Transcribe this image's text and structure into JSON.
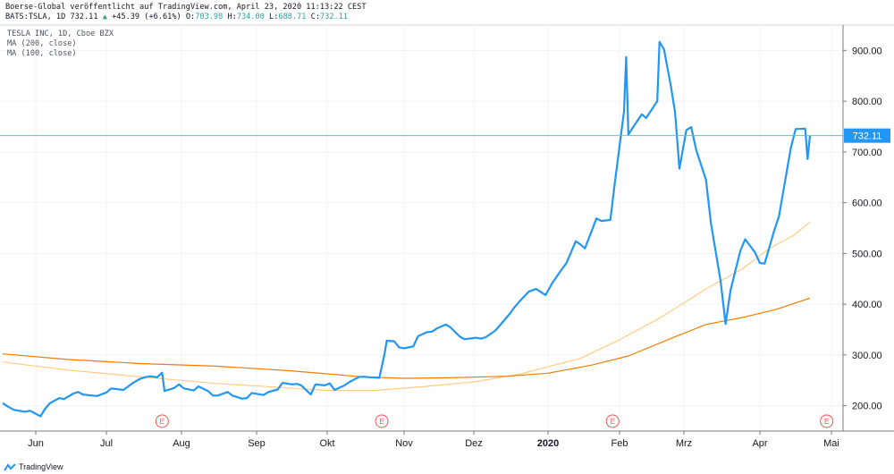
{
  "header": {
    "line1": "Boerse-Global veröffentlicht auf TradingView.com, April 23, 2020 11:13:22 CEST",
    "symbol": "BATS:TSLA, 1D",
    "last": "732.11",
    "change": "+45.39 (+6.61%)",
    "o_label": "O:",
    "o": "703.98",
    "h_label": "H:",
    "h": "734.00",
    "l_label": "L:",
    "l": "688.71",
    "c_label": "C:",
    "c": "732.11"
  },
  "legend": {
    "title": "TESLA INC, 1D, Cboe BZX",
    "ma200": "MA (200, close)",
    "ma100": "MA (100, close)"
  },
  "footer": {
    "brand": "TradingView"
  },
  "colors": {
    "price": "#2196f3",
    "ma200": "#ffcc80",
    "ma100": "#f57c00",
    "last_line": "#64b5f6",
    "label_bg": "#2196f3",
    "earnings": "#ef5350",
    "axis": "#787b86"
  },
  "chart_data": {
    "type": "line",
    "y_axis": {
      "min": 150,
      "max": 950,
      "ticks": [
        200,
        300,
        400,
        500,
        600,
        700,
        800,
        900
      ],
      "tick_labels": [
        "200.00",
        "300.00",
        "400.00",
        "500.00",
        "600.00",
        "700.00",
        "800.00",
        "900.00"
      ]
    },
    "x_labels": [
      "Jun",
      "Jul",
      "Aug",
      "Sep",
      "Okt",
      "Nov",
      "Dez",
      "2020",
      "Feb",
      "Mrz",
      "Apr",
      "Mai"
    ],
    "last_price": 732.11,
    "last_price_label": "732.11",
    "earnings_marker_label": "E",
    "earnings_dates": [
      "2019-07-24",
      "2019-10-23",
      "2020-01-29",
      "2020-04-29"
    ],
    "series": [
      {
        "name": "TSLA",
        "points": [
          [
            "2019-05-20",
            205
          ],
          [
            "2019-05-22",
            198
          ],
          [
            "2019-05-24",
            192
          ],
          [
            "2019-05-28",
            188
          ],
          [
            "2019-05-30",
            190
          ],
          [
            "2019-06-03",
            179
          ],
          [
            "2019-06-05",
            194
          ],
          [
            "2019-06-07",
            205
          ],
          [
            "2019-06-11",
            215
          ],
          [
            "2019-06-13",
            213
          ],
          [
            "2019-06-17",
            224
          ],
          [
            "2019-06-19",
            227
          ],
          [
            "2019-06-21",
            222
          ],
          [
            "2019-06-25",
            220
          ],
          [
            "2019-06-27",
            219
          ],
          [
            "2019-07-01",
            226
          ],
          [
            "2019-07-03",
            234
          ],
          [
            "2019-07-08",
            231
          ],
          [
            "2019-07-10",
            238
          ],
          [
            "2019-07-12",
            245
          ],
          [
            "2019-07-15",
            253
          ],
          [
            "2019-07-17",
            256
          ],
          [
            "2019-07-19",
            258
          ],
          [
            "2019-07-22",
            256
          ],
          [
            "2019-07-24",
            265
          ],
          [
            "2019-07-25",
            229
          ],
          [
            "2019-07-29",
            235
          ],
          [
            "2019-07-31",
            242
          ],
          [
            "2019-08-02",
            234
          ],
          [
            "2019-08-06",
            230
          ],
          [
            "2019-08-08",
            238
          ],
          [
            "2019-08-12",
            229
          ],
          [
            "2019-08-14",
            220
          ],
          [
            "2019-08-16",
            220
          ],
          [
            "2019-08-20",
            227
          ],
          [
            "2019-08-22",
            220
          ],
          [
            "2019-08-26",
            214
          ],
          [
            "2019-08-28",
            215
          ],
          [
            "2019-08-30",
            225
          ],
          [
            "2019-09-04",
            221
          ],
          [
            "2019-09-06",
            227
          ],
          [
            "2019-09-10",
            232
          ],
          [
            "2019-09-12",
            245
          ],
          [
            "2019-09-16",
            242
          ],
          [
            "2019-09-18",
            243
          ],
          [
            "2019-09-20",
            240
          ],
          [
            "2019-09-24",
            222
          ],
          [
            "2019-09-26",
            242
          ],
          [
            "2019-09-30",
            240
          ],
          [
            "2019-10-02",
            244
          ],
          [
            "2019-10-04",
            231
          ],
          [
            "2019-10-08",
            240
          ],
          [
            "2019-10-10",
            247
          ],
          [
            "2019-10-14",
            257
          ],
          [
            "2019-10-16",
            257
          ],
          [
            "2019-10-18",
            256
          ],
          [
            "2019-10-22",
            255
          ],
          [
            "2019-10-24",
            299
          ],
          [
            "2019-10-25",
            328
          ],
          [
            "2019-10-28",
            327
          ],
          [
            "2019-10-30",
            315
          ],
          [
            "2019-11-01",
            313
          ],
          [
            "2019-11-05",
            317
          ],
          [
            "2019-11-07",
            337
          ],
          [
            "2019-11-11",
            345
          ],
          [
            "2019-11-13",
            346
          ],
          [
            "2019-11-15",
            352
          ],
          [
            "2019-11-19",
            360
          ],
          [
            "2019-11-21",
            354
          ],
          [
            "2019-11-25",
            336
          ],
          [
            "2019-11-27",
            331
          ],
          [
            "2019-12-02",
            334
          ],
          [
            "2019-12-04",
            332
          ],
          [
            "2019-12-06",
            335
          ],
          [
            "2019-12-10",
            348
          ],
          [
            "2019-12-12",
            359
          ],
          [
            "2019-12-16",
            381
          ],
          [
            "2019-12-18",
            394
          ],
          [
            "2019-12-20",
            405
          ],
          [
            "2019-12-24",
            425
          ],
          [
            "2019-12-27",
            430
          ],
          [
            "2019-12-31",
            418
          ],
          [
            "2020-01-03",
            443
          ],
          [
            "2020-01-07",
            469
          ],
          [
            "2020-01-09",
            481
          ],
          [
            "2020-01-13",
            524
          ],
          [
            "2020-01-15",
            518
          ],
          [
            "2020-01-17",
            510
          ],
          [
            "2020-01-22",
            569
          ],
          [
            "2020-01-24",
            564
          ],
          [
            "2020-01-28",
            566
          ],
          [
            "2020-01-30",
            640
          ],
          [
            "2020-02-03",
            780
          ],
          [
            "2020-02-04",
            887
          ],
          [
            "2020-02-05",
            734
          ],
          [
            "2020-02-07",
            748
          ],
          [
            "2020-02-11",
            774
          ],
          [
            "2020-02-13",
            767
          ],
          [
            "2020-02-18",
            800
          ],
          [
            "2020-02-19",
            917
          ],
          [
            "2020-02-21",
            902
          ],
          [
            "2020-02-24",
            833
          ],
          [
            "2020-02-26",
            778
          ],
          [
            "2020-02-28",
            667
          ],
          [
            "2020-03-02",
            743
          ],
          [
            "2020-03-04",
            749
          ],
          [
            "2020-03-06",
            704
          ],
          [
            "2020-03-10",
            645
          ],
          [
            "2020-03-12",
            560
          ],
          [
            "2020-03-16",
            445
          ],
          [
            "2020-03-18",
            361
          ],
          [
            "2020-03-20",
            427
          ],
          [
            "2020-03-24",
            505
          ],
          [
            "2020-03-26",
            528
          ],
          [
            "2020-03-30",
            502
          ],
          [
            "2020-04-01",
            481
          ],
          [
            "2020-04-03",
            480
          ],
          [
            "2020-04-07",
            545
          ],
          [
            "2020-04-09",
            573
          ],
          [
            "2020-04-14",
            709
          ],
          [
            "2020-04-16",
            745
          ],
          [
            "2020-04-20",
            746
          ],
          [
            "2020-04-21",
            686
          ],
          [
            "2020-04-22",
            732
          ]
        ]
      },
      {
        "name": "MA (200, close)",
        "points": [
          [
            "2019-05-20",
            286
          ],
          [
            "2019-06-15",
            270
          ],
          [
            "2019-07-15",
            257
          ],
          [
            "2019-08-15",
            244
          ],
          [
            "2019-09-15",
            235
          ],
          [
            "2019-10-01",
            230
          ],
          [
            "2019-10-20",
            230
          ],
          [
            "2019-11-10",
            238
          ],
          [
            "2019-12-01",
            247
          ],
          [
            "2019-12-20",
            262
          ],
          [
            "2020-01-15",
            293
          ],
          [
            "2020-02-01",
            330
          ],
          [
            "2020-02-20",
            375
          ],
          [
            "2020-03-10",
            430
          ],
          [
            "2020-03-25",
            470
          ],
          [
            "2020-04-05",
            510
          ],
          [
            "2020-04-15",
            535
          ],
          [
            "2020-04-22",
            562
          ]
        ]
      },
      {
        "name": "MA (100, close)",
        "points": [
          [
            "2019-05-20",
            302
          ],
          [
            "2019-06-15",
            291
          ],
          [
            "2019-07-15",
            283
          ],
          [
            "2019-08-15",
            278
          ],
          [
            "2019-09-15",
            269
          ],
          [
            "2019-10-15",
            257
          ],
          [
            "2019-11-01",
            254
          ],
          [
            "2019-11-20",
            255
          ],
          [
            "2019-12-15",
            258
          ],
          [
            "2020-01-01",
            264
          ],
          [
            "2020-01-20",
            280
          ],
          [
            "2020-02-05",
            298
          ],
          [
            "2020-02-25",
            334
          ],
          [
            "2020-03-10",
            360
          ],
          [
            "2020-03-25",
            374
          ],
          [
            "2020-04-08",
            390
          ],
          [
            "2020-04-22",
            412
          ]
        ]
      }
    ]
  }
}
